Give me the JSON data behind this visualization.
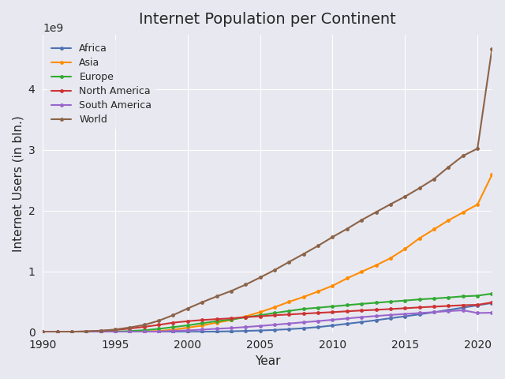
{
  "title": "Internet Population per Continent",
  "xlabel": "Year",
  "ylabel": "Internet Users (in bln.)",
  "background_color": "#e8e8f0",
  "series": {
    "Africa": {
      "color": "#4c72b0",
      "years": [
        1990,
        1991,
        1992,
        1993,
        1994,
        1995,
        1996,
        1997,
        1998,
        1999,
        2000,
        2001,
        2002,
        2003,
        2004,
        2005,
        2006,
        2007,
        2008,
        2009,
        2010,
        2011,
        2012,
        2013,
        2014,
        2015,
        2016,
        2017,
        2018,
        2019,
        2020,
        2021
      ],
      "values": [
        0.0,
        0.0,
        0.0,
        0.0,
        0.0,
        0.0,
        0.0,
        0.0,
        1000000,
        2000000,
        4000000,
        7000000,
        11000000,
        15000000,
        21000000,
        28000000,
        37000000,
        50000000,
        65000000,
        84000000,
        110000000,
        139000000,
        167000000,
        197000000,
        230000000,
        261000000,
        294000000,
        328000000,
        366000000,
        404000000,
        442000000,
        480000000
      ]
    },
    "Asia": {
      "color": "#ff8c00",
      "years": [
        1990,
        1991,
        1992,
        1993,
        1994,
        1995,
        1996,
        1997,
        1998,
        1999,
        2000,
        2001,
        2002,
        2003,
        2004,
        2005,
        2006,
        2007,
        2008,
        2009,
        2010,
        2011,
        2012,
        2013,
        2014,
        2015,
        2016,
        2017,
        2018,
        2019,
        2020,
        2021
      ],
      "values": [
        0.0,
        0.0,
        0.0,
        0.0,
        1000000,
        2000000,
        5000000,
        10000000,
        20000000,
        40000000,
        75000000,
        110000000,
        157000000,
        200000000,
        260000000,
        330000000,
        410000000,
        500000000,
        580000000,
        670000000,
        764000000,
        886000000,
        994000000,
        1100000000,
        1218000000,
        1370000000,
        1545000000,
        1692000000,
        1840000000,
        1970000000,
        2100000000,
        2590000000
      ]
    },
    "Europe": {
      "color": "#33aa33",
      "years": [
        1990,
        1991,
        1992,
        1993,
        1994,
        1995,
        1996,
        1997,
        1998,
        1999,
        2000,
        2001,
        2002,
        2003,
        2004,
        2005,
        2006,
        2007,
        2008,
        2009,
        2010,
        2011,
        2012,
        2013,
        2014,
        2015,
        2016,
        2017,
        2018,
        2019,
        2020,
        2021
      ],
      "values": [
        1000000,
        1000000,
        2000000,
        3000000,
        5000000,
        9000000,
        18000000,
        33000000,
        55000000,
        83000000,
        113000000,
        148000000,
        180000000,
        210000000,
        244000000,
        280000000,
        316000000,
        350000000,
        383000000,
        403000000,
        424000000,
        445000000,
        466000000,
        484000000,
        503000000,
        520000000,
        540000000,
        554000000,
        570000000,
        590000000,
        600000000,
        634000000
      ]
    },
    "North America": {
      "color": "#cc3333",
      "years": [
        1990,
        1991,
        1992,
        1993,
        1994,
        1995,
        1996,
        1997,
        1998,
        1999,
        2000,
        2001,
        2002,
        2003,
        2004,
        2005,
        2006,
        2007,
        2008,
        2009,
        2010,
        2011,
        2012,
        2013,
        2014,
        2015,
        2016,
        2017,
        2018,
        2019,
        2020,
        2021
      ],
      "values": [
        3000000,
        4000000,
        7000000,
        12000000,
        20000000,
        36000000,
        60000000,
        88000000,
        120000000,
        157000000,
        181000000,
        200000000,
        215000000,
        228000000,
        248000000,
        262000000,
        278000000,
        292000000,
        305000000,
        318000000,
        330000000,
        344000000,
        357000000,
        368000000,
        381000000,
        394000000,
        408000000,
        420000000,
        432000000,
        444000000,
        450000000,
        490000000
      ]
    },
    "South America": {
      "color": "#9966cc",
      "years": [
        1990,
        1991,
        1992,
        1993,
        1994,
        1995,
        1996,
        1997,
        1998,
        1999,
        2000,
        2001,
        2002,
        2003,
        2004,
        2005,
        2006,
        2007,
        2008,
        2009,
        2010,
        2011,
        2012,
        2013,
        2014,
        2015,
        2016,
        2017,
        2018,
        2019,
        2020,
        2021
      ],
      "values": [
        0.0,
        0.0,
        0.0,
        1000000,
        1000000,
        2000000,
        4000000,
        7000000,
        12000000,
        20000000,
        30000000,
        42000000,
        57000000,
        68000000,
        85000000,
        103000000,
        122000000,
        143000000,
        163000000,
        183000000,
        204000000,
        226000000,
        248000000,
        266000000,
        284000000,
        300000000,
        315000000,
        330000000,
        347000000,
        360000000,
        316000000,
        320000000
      ]
    },
    "World": {
      "color": "#8B6347",
      "years": [
        1990,
        1991,
        1992,
        1993,
        1994,
        1995,
        1996,
        1997,
        1998,
        1999,
        2000,
        2001,
        2002,
        2003,
        2004,
        2005,
        2006,
        2007,
        2008,
        2009,
        2010,
        2011,
        2012,
        2013,
        2014,
        2015,
        2016,
        2017,
        2018,
        2019,
        2020,
        2021
      ],
      "values": [
        3000000,
        4000000,
        7000000,
        14000000,
        25000000,
        44000000,
        77000000,
        120000000,
        188000000,
        281000000,
        390000000,
        493000000,
        588000000,
        678000000,
        782000000,
        900000000,
        1022000000,
        1156000000,
        1287000000,
        1421000000,
        1566000000,
        1700000000,
        1844000000,
        1975000000,
        2105000000,
        2230000000,
        2370000000,
        2520000000,
        2716000000,
        2900000000,
        3020000000,
        4660000000
      ]
    }
  }
}
